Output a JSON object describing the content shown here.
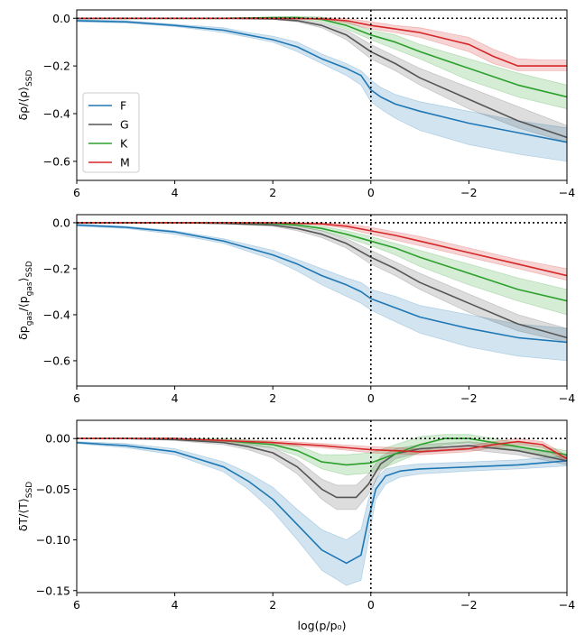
{
  "chart_data": [
    {
      "type": "line",
      "ylabel": "δρ/⟨ρ⟩_SSD",
      "xlabel": "",
      "xlim": [
        6,
        -4
      ],
      "ylim": [
        -0.68,
        0.035
      ],
      "yticks": [
        "0.0",
        "−0.2",
        "−0.4",
        "−0.6"
      ],
      "ytick_values": [
        0.0,
        -0.2,
        -0.4,
        -0.6
      ],
      "xticks": [
        "6",
        "4",
        "2",
        "0",
        "−2",
        "−4"
      ],
      "xtick_values": [
        6,
        4,
        2,
        0,
        -2,
        -4
      ],
      "legend": {
        "placement": "lower-left",
        "entries": [
          "F",
          "G",
          "K",
          "M"
        ]
      },
      "series": [
        {
          "name": "F",
          "color": "#1f77b4",
          "x": [
            6,
            5,
            4,
            3,
            2.5,
            2,
            1.5,
            1,
            0.5,
            0.2,
            0,
            -0.2,
            -0.5,
            -1,
            -2,
            -3,
            -4
          ],
          "y": [
            -0.01,
            -0.015,
            -0.03,
            -0.05,
            -0.07,
            -0.09,
            -0.12,
            -0.17,
            -0.21,
            -0.24,
            -0.3,
            -0.33,
            -0.36,
            -0.39,
            -0.44,
            -0.48,
            -0.52
          ],
          "lower": [
            -0.015,
            -0.02,
            -0.035,
            -0.06,
            -0.08,
            -0.1,
            -0.14,
            -0.19,
            -0.24,
            -0.28,
            -0.35,
            -0.38,
            -0.42,
            -0.47,
            -0.53,
            -0.57,
            -0.6
          ],
          "upper": [
            -0.005,
            -0.01,
            -0.025,
            -0.04,
            -0.06,
            -0.075,
            -0.1,
            -0.15,
            -0.19,
            -0.22,
            -0.26,
            -0.29,
            -0.32,
            -0.35,
            -0.39,
            -0.43,
            -0.46
          ]
        },
        {
          "name": "G",
          "color": "#555555",
          "x": [
            6,
            5,
            4,
            3,
            2,
            1.5,
            1,
            0.5,
            0,
            -0.5,
            -1,
            -2,
            -3,
            -4
          ],
          "y": [
            0,
            0,
            0,
            0,
            -0.003,
            -0.01,
            -0.03,
            -0.07,
            -0.14,
            -0.19,
            -0.25,
            -0.34,
            -0.43,
            -0.5
          ],
          "lower": [
            0,
            0,
            0,
            0,
            -0.005,
            -0.015,
            -0.04,
            -0.09,
            -0.17,
            -0.22,
            -0.28,
            -0.38,
            -0.46,
            -0.52
          ],
          "upper": [
            0,
            0,
            0,
            0,
            0,
            -0.005,
            -0.02,
            -0.05,
            -0.11,
            -0.16,
            -0.21,
            -0.29,
            -0.37,
            -0.45
          ]
        },
        {
          "name": "K",
          "color": "#2ca02c",
          "x": [
            6,
            5,
            4,
            3,
            2,
            1.5,
            1,
            0.5,
            0,
            -0.5,
            -1,
            -2,
            -3,
            -4
          ],
          "y": [
            0,
            0,
            0,
            0,
            0.003,
            0.003,
            -0.005,
            -0.03,
            -0.07,
            -0.1,
            -0.14,
            -0.21,
            -0.28,
            -0.33
          ],
          "lower": [
            0,
            0,
            0,
            0,
            0,
            -0.002,
            -0.015,
            -0.045,
            -0.09,
            -0.13,
            -0.17,
            -0.26,
            -0.33,
            -0.38
          ],
          "upper": [
            0,
            0,
            0,
            0,
            0.006,
            0.008,
            0.005,
            -0.015,
            -0.05,
            -0.07,
            -0.11,
            -0.17,
            -0.23,
            -0.28
          ]
        },
        {
          "name": "M",
          "color": "#d62728",
          "x": [
            6,
            5,
            4,
            3,
            2,
            1,
            0.5,
            0,
            -0.5,
            -1,
            -2,
            -2.5,
            -3,
            -3.5,
            -4
          ],
          "y": [
            0,
            0,
            0,
            0,
            0,
            -0.002,
            -0.01,
            -0.03,
            -0.045,
            -0.06,
            -0.11,
            -0.16,
            -0.2,
            -0.2,
            -0.2
          ],
          "lower": [
            0,
            0,
            0,
            0,
            0,
            -0.006,
            -0.02,
            -0.045,
            -0.06,
            -0.08,
            -0.14,
            -0.19,
            -0.22,
            -0.22,
            -0.22
          ],
          "upper": [
            0,
            0,
            0,
            0,
            0,
            0.002,
            0,
            -0.015,
            -0.03,
            -0.04,
            -0.08,
            -0.13,
            -0.17,
            -0.175,
            -0.175
          ]
        }
      ]
    },
    {
      "type": "line",
      "ylabel": "δp_gas/⟨p_gas⟩_SSD",
      "xlabel": "",
      "xlim": [
        6,
        -4
      ],
      "ylim": [
        -0.71,
        0.035
      ],
      "yticks": [
        "0.0",
        "−0.2",
        "−0.4",
        "−0.6"
      ],
      "ytick_values": [
        0.0,
        -0.2,
        -0.4,
        -0.6
      ],
      "xticks": [
        "6",
        "4",
        "2",
        "0",
        "−2",
        "−4"
      ],
      "xtick_values": [
        6,
        4,
        2,
        0,
        -2,
        -4
      ],
      "series": [
        {
          "name": "F",
          "color": "#1f77b4",
          "x": [
            6,
            5,
            4,
            3,
            2,
            1.5,
            1,
            0.5,
            0.2,
            0,
            -0.5,
            -1,
            -2,
            -3,
            -4
          ],
          "y": [
            -0.01,
            -0.02,
            -0.04,
            -0.08,
            -0.14,
            -0.18,
            -0.23,
            -0.27,
            -0.3,
            -0.33,
            -0.37,
            -0.41,
            -0.46,
            -0.5,
            -0.52
          ],
          "lower": [
            -0.015,
            -0.025,
            -0.05,
            -0.09,
            -0.16,
            -0.21,
            -0.27,
            -0.32,
            -0.35,
            -0.38,
            -0.43,
            -0.48,
            -0.54,
            -0.58,
            -0.6
          ],
          "upper": [
            -0.005,
            -0.015,
            -0.035,
            -0.07,
            -0.12,
            -0.16,
            -0.2,
            -0.24,
            -0.26,
            -0.29,
            -0.32,
            -0.36,
            -0.4,
            -0.44,
            -0.46
          ]
        },
        {
          "name": "G",
          "color": "#555555",
          "x": [
            6,
            5,
            4,
            3,
            2,
            1.5,
            1,
            0.5,
            0,
            -0.5,
            -1,
            -2,
            -3,
            -4
          ],
          "y": [
            0,
            0,
            0,
            -0.003,
            -0.01,
            -0.025,
            -0.05,
            -0.09,
            -0.15,
            -0.2,
            -0.26,
            -0.35,
            -0.44,
            -0.5
          ],
          "lower": [
            0,
            0,
            0,
            -0.005,
            -0.015,
            -0.035,
            -0.065,
            -0.11,
            -0.18,
            -0.23,
            -0.29,
            -0.39,
            -0.47,
            -0.52
          ],
          "upper": [
            0,
            0,
            0,
            0,
            -0.005,
            -0.015,
            -0.035,
            -0.07,
            -0.12,
            -0.17,
            -0.22,
            -0.31,
            -0.4,
            -0.46
          ]
        },
        {
          "name": "K",
          "color": "#2ca02c",
          "x": [
            6,
            5,
            4,
            3,
            2,
            1.5,
            1,
            0.5,
            0,
            -0.5,
            -1,
            -2,
            -3,
            -4
          ],
          "y": [
            0,
            0,
            0,
            0,
            -0.003,
            -0.01,
            -0.025,
            -0.05,
            -0.08,
            -0.11,
            -0.15,
            -0.22,
            -0.29,
            -0.34
          ],
          "lower": [
            0,
            0,
            0,
            0,
            -0.006,
            -0.015,
            -0.035,
            -0.065,
            -0.1,
            -0.14,
            -0.19,
            -0.27,
            -0.34,
            -0.4
          ],
          "upper": [
            0,
            0,
            0,
            0,
            0,
            -0.005,
            -0.015,
            -0.035,
            -0.06,
            -0.09,
            -0.12,
            -0.18,
            -0.24,
            -0.29
          ]
        },
        {
          "name": "M",
          "color": "#d62728",
          "x": [
            6,
            5,
            4,
            3,
            2,
            1,
            0.5,
            0,
            -0.5,
            -1,
            -2,
            -3,
            -4
          ],
          "y": [
            0,
            0,
            0,
            0,
            0,
            -0.005,
            -0.015,
            -0.035,
            -0.055,
            -0.08,
            -0.13,
            -0.18,
            -0.23
          ],
          "lower": [
            0,
            0,
            0,
            0,
            0,
            -0.01,
            -0.025,
            -0.05,
            -0.075,
            -0.1,
            -0.15,
            -0.2,
            -0.25
          ],
          "upper": [
            0,
            0,
            0,
            0,
            0,
            0,
            -0.005,
            -0.02,
            -0.04,
            -0.06,
            -0.11,
            -0.16,
            -0.2
          ]
        }
      ]
    },
    {
      "type": "line",
      "ylabel": "δT/⟨T⟩_SSD",
      "xlabel": "log(p/p₀)",
      "xlim": [
        6,
        -4
      ],
      "ylim": [
        -0.152,
        0.018
      ],
      "yticks": [
        "0.00",
        "−0.05",
        "−0.10",
        "−0.15"
      ],
      "ytick_values": [
        0.0,
        -0.05,
        -0.1,
        -0.15
      ],
      "xticks": [
        "6",
        "4",
        "2",
        "0",
        "−2",
        "−4"
      ],
      "xtick_values": [
        6,
        4,
        2,
        0,
        -2,
        -4
      ],
      "series": [
        {
          "name": "F",
          "color": "#1f77b4",
          "x": [
            6,
            5,
            4,
            3,
            2.5,
            2,
            1.5,
            1,
            0.5,
            0.2,
            0.05,
            -0.1,
            -0.3,
            -0.6,
            -1,
            -2,
            -3,
            -4
          ],
          "y": [
            -0.004,
            -0.007,
            -0.013,
            -0.028,
            -0.042,
            -0.06,
            -0.085,
            -0.11,
            -0.123,
            -0.115,
            -0.08,
            -0.05,
            -0.037,
            -0.032,
            -0.03,
            -0.028,
            -0.026,
            -0.022
          ],
          "lower": [
            -0.005,
            -0.009,
            -0.016,
            -0.033,
            -0.05,
            -0.072,
            -0.1,
            -0.13,
            -0.145,
            -0.14,
            -0.1,
            -0.06,
            -0.045,
            -0.038,
            -0.035,
            -0.032,
            -0.03,
            -0.027
          ],
          "upper": [
            -0.003,
            -0.005,
            -0.01,
            -0.023,
            -0.034,
            -0.048,
            -0.07,
            -0.09,
            -0.1,
            -0.09,
            -0.06,
            -0.04,
            -0.03,
            -0.027,
            -0.025,
            -0.023,
            -0.021,
            -0.017
          ]
        },
        {
          "name": "G",
          "color": "#555555",
          "x": [
            6,
            5,
            4,
            3,
            2.5,
            2,
            1.5,
            1,
            0.7,
            0.3,
            0.05,
            -0.2,
            -0.5,
            -1,
            -2,
            -3,
            -4
          ],
          "y": [
            0,
            0,
            -0.001,
            -0.004,
            -0.008,
            -0.014,
            -0.028,
            -0.05,
            -0.058,
            -0.058,
            -0.045,
            -0.025,
            -0.015,
            -0.01,
            -0.007,
            -0.012,
            -0.022
          ],
          "lower": [
            0,
            0,
            -0.002,
            -0.006,
            -0.011,
            -0.019,
            -0.035,
            -0.06,
            -0.07,
            -0.07,
            -0.055,
            -0.032,
            -0.02,
            -0.014,
            -0.011,
            -0.016,
            -0.026
          ],
          "upper": [
            0,
            0,
            0,
            -0.002,
            -0.005,
            -0.009,
            -0.021,
            -0.04,
            -0.046,
            -0.046,
            -0.035,
            -0.018,
            -0.01,
            -0.006,
            -0.003,
            -0.008,
            -0.018
          ]
        },
        {
          "name": "K",
          "color": "#2ca02c",
          "x": [
            6,
            5,
            4,
            3,
            2,
            1.5,
            1,
            0.5,
            0,
            -0.5,
            -1,
            -1.5,
            -2,
            -3,
            -4
          ],
          "y": [
            0,
            0,
            0,
            -0.002,
            -0.006,
            -0.012,
            -0.023,
            -0.026,
            -0.024,
            -0.015,
            -0.006,
            0,
            0,
            -0.008,
            -0.016
          ],
          "lower": [
            0,
            0,
            -0.001,
            -0.004,
            -0.009,
            -0.017,
            -0.03,
            -0.036,
            -0.034,
            -0.024,
            -0.014,
            -0.006,
            -0.004,
            -0.012,
            -0.02
          ],
          "upper": [
            0,
            0,
            0,
            0,
            -0.003,
            -0.007,
            -0.016,
            -0.016,
            -0.014,
            -0.006,
            0.002,
            0.004,
            0.004,
            -0.004,
            -0.012
          ]
        },
        {
          "name": "M",
          "color": "#d62728",
          "x": [
            6,
            5,
            4,
            3,
            2,
            1,
            0,
            -1,
            -2,
            -2.5,
            -3,
            -3.5,
            -4
          ],
          "y": [
            0,
            0,
            0,
            -0.002,
            -0.004,
            -0.007,
            -0.011,
            -0.013,
            -0.01,
            -0.006,
            -0.003,
            -0.006,
            -0.02
          ],
          "lower": [
            0,
            0,
            0,
            -0.003,
            -0.006,
            -0.009,
            -0.014,
            -0.016,
            -0.013,
            -0.009,
            -0.006,
            -0.009,
            -0.023
          ],
          "upper": [
            0,
            0,
            0,
            -0.001,
            -0.002,
            -0.005,
            -0.008,
            -0.01,
            -0.007,
            -0.003,
            0,
            -0.003,
            -0.017
          ]
        }
      ]
    }
  ]
}
